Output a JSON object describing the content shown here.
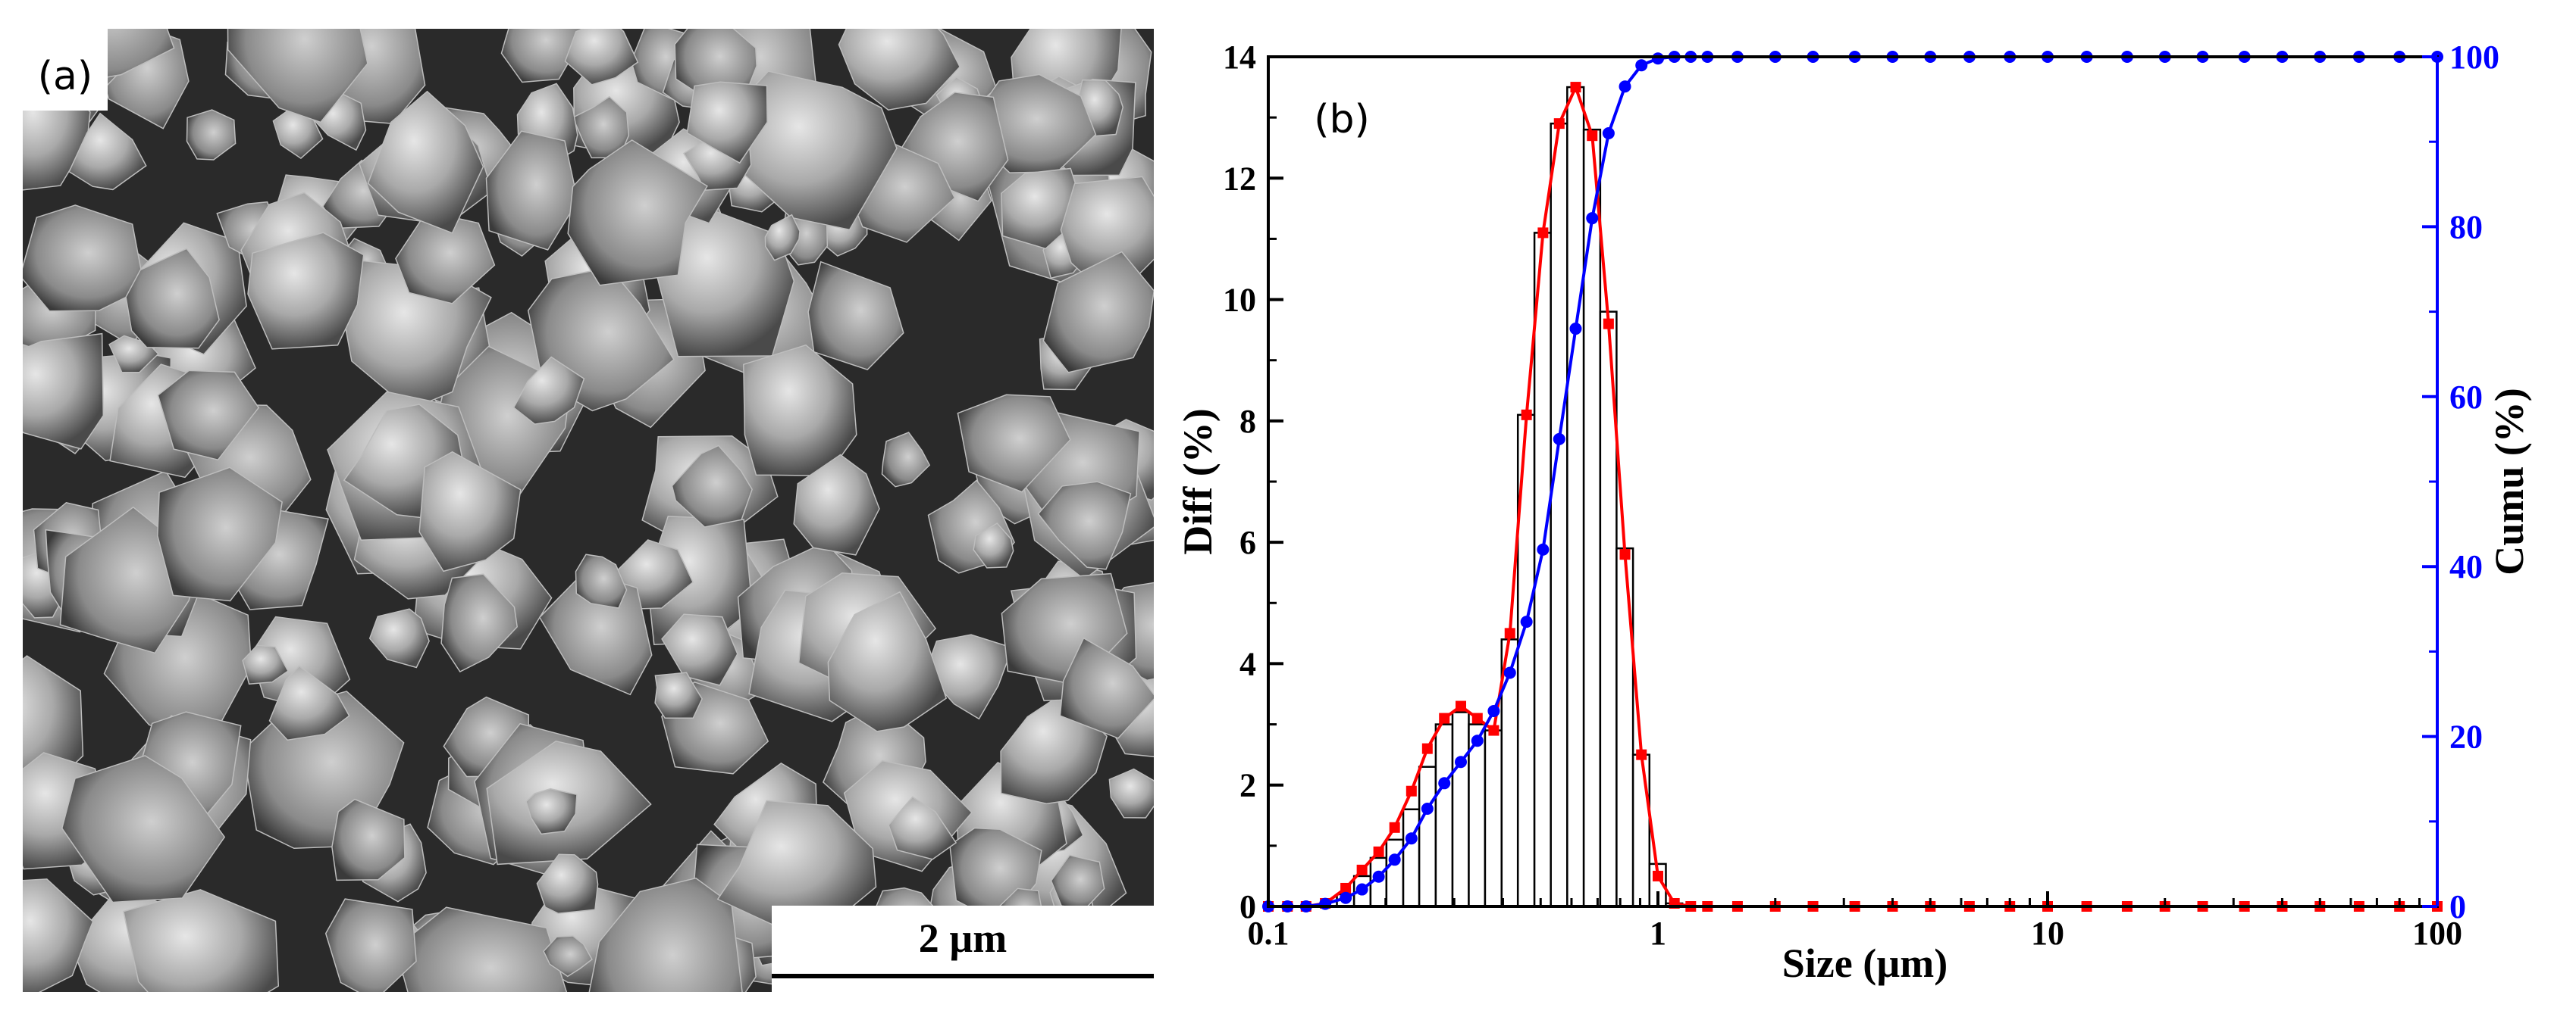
{
  "panel_a": {
    "label": "(a)",
    "scale_bar_label": "2 µm",
    "image_description_icon": "sem-micrograph-icon"
  },
  "chart_data": {
    "type": "bar",
    "panel_label": "(b)",
    "xlabel": "Size (µm)",
    "ylabel_left": "Diff (%)",
    "ylabel_right": "Cumu (%)",
    "x_scale": "log",
    "xlim": [
      0.1,
      100
    ],
    "ylim_left": [
      0,
      14
    ],
    "ylim_right": [
      0,
      100
    ],
    "x_ticks": [
      0.1,
      1,
      10,
      100
    ],
    "x_tick_labels": [
      "0.1",
      "1",
      "10",
      "100"
    ],
    "y_left_ticks": [
      0,
      2,
      4,
      6,
      8,
      10,
      12,
      14
    ],
    "y_left_tick_labels": [
      "0",
      "2",
      "4",
      "6",
      "8",
      "10",
      "12",
      "14"
    ],
    "y_right_ticks": [
      0,
      20,
      40,
      60,
      80,
      100
    ],
    "y_right_tick_labels": [
      "0",
      "20",
      "40",
      "60",
      "80",
      "100"
    ],
    "colors": {
      "diff": "#ff0000",
      "cumu": "#0000ff",
      "bars": "#000000"
    },
    "histogram": {
      "bin_edges_um": [
        0.15,
        0.166,
        0.183,
        0.201,
        0.222,
        0.244,
        0.269,
        0.297,
        0.327,
        0.36,
        0.397,
        0.437,
        0.482,
        0.531,
        0.585,
        0.645,
        0.711,
        0.783,
        0.863,
        0.951,
        1.048,
        1.155,
        1.272
      ],
      "values": [
        0.2,
        0.5,
        0.8,
        1.1,
        1.6,
        2.3,
        3.0,
        3.2,
        3.0,
        2.9,
        4.4,
        8.1,
        11.1,
        12.9,
        13.5,
        12.8,
        9.8,
        5.9,
        2.5,
        0.7,
        0.05,
        0.0
      ]
    },
    "series": [
      {
        "name": "Diff (%)",
        "axis": "left",
        "x": [
          0.1,
          0.112,
          0.125,
          0.14,
          0.158,
          0.174,
          0.192,
          0.211,
          0.233,
          0.256,
          0.283,
          0.312,
          0.344,
          0.379,
          0.417,
          0.46,
          0.507,
          0.558,
          0.615,
          0.678,
          0.747,
          0.823,
          0.907,
          1.0,
          1.102,
          1.214,
          1.34,
          1.6,
          2.0,
          2.5,
          3.2,
          4.0,
          5.0,
          6.3,
          8.0,
          10,
          12.6,
          16,
          20,
          25,
          32,
          40,
          50,
          63,
          80,
          100
        ],
        "values": [
          0,
          0,
          0,
          0.05,
          0.3,
          0.6,
          0.9,
          1.3,
          1.9,
          2.6,
          3.1,
          3.3,
          3.1,
          2.9,
          4.5,
          8.1,
          11.1,
          12.9,
          13.5,
          12.7,
          9.6,
          5.8,
          2.5,
          0.5,
          0.05,
          0,
          0,
          0,
          0,
          0,
          0,
          0,
          0,
          0,
          0,
          0,
          0,
          0,
          0,
          0,
          0,
          0,
          0,
          0,
          0,
          0
        ]
      },
      {
        "name": "Cumu (%)",
        "axis": "right",
        "x": [
          0.1,
          0.112,
          0.125,
          0.14,
          0.158,
          0.174,
          0.192,
          0.211,
          0.233,
          0.256,
          0.283,
          0.312,
          0.344,
          0.379,
          0.417,
          0.46,
          0.507,
          0.558,
          0.615,
          0.678,
          0.747,
          0.823,
          0.907,
          1.0,
          1.102,
          1.214,
          1.34,
          1.6,
          2.0,
          2.5,
          3.2,
          4.0,
          5.0,
          6.3,
          8.0,
          10,
          12.6,
          16,
          20,
          25,
          32,
          40,
          50,
          63,
          80,
          100
        ],
        "values": [
          0,
          0,
          0,
          0.3,
          1.0,
          2.0,
          3.5,
          5.5,
          8.0,
          11.5,
          14.5,
          17.0,
          19.5,
          23.0,
          27.5,
          33.5,
          42.0,
          55.0,
          68.0,
          81.0,
          91.0,
          96.5,
          99.0,
          99.8,
          100,
          100,
          100,
          100,
          100,
          100,
          100,
          100,
          100,
          100,
          100,
          100,
          100,
          100,
          100,
          100,
          100,
          100,
          100,
          100,
          100,
          100
        ]
      }
    ]
  }
}
